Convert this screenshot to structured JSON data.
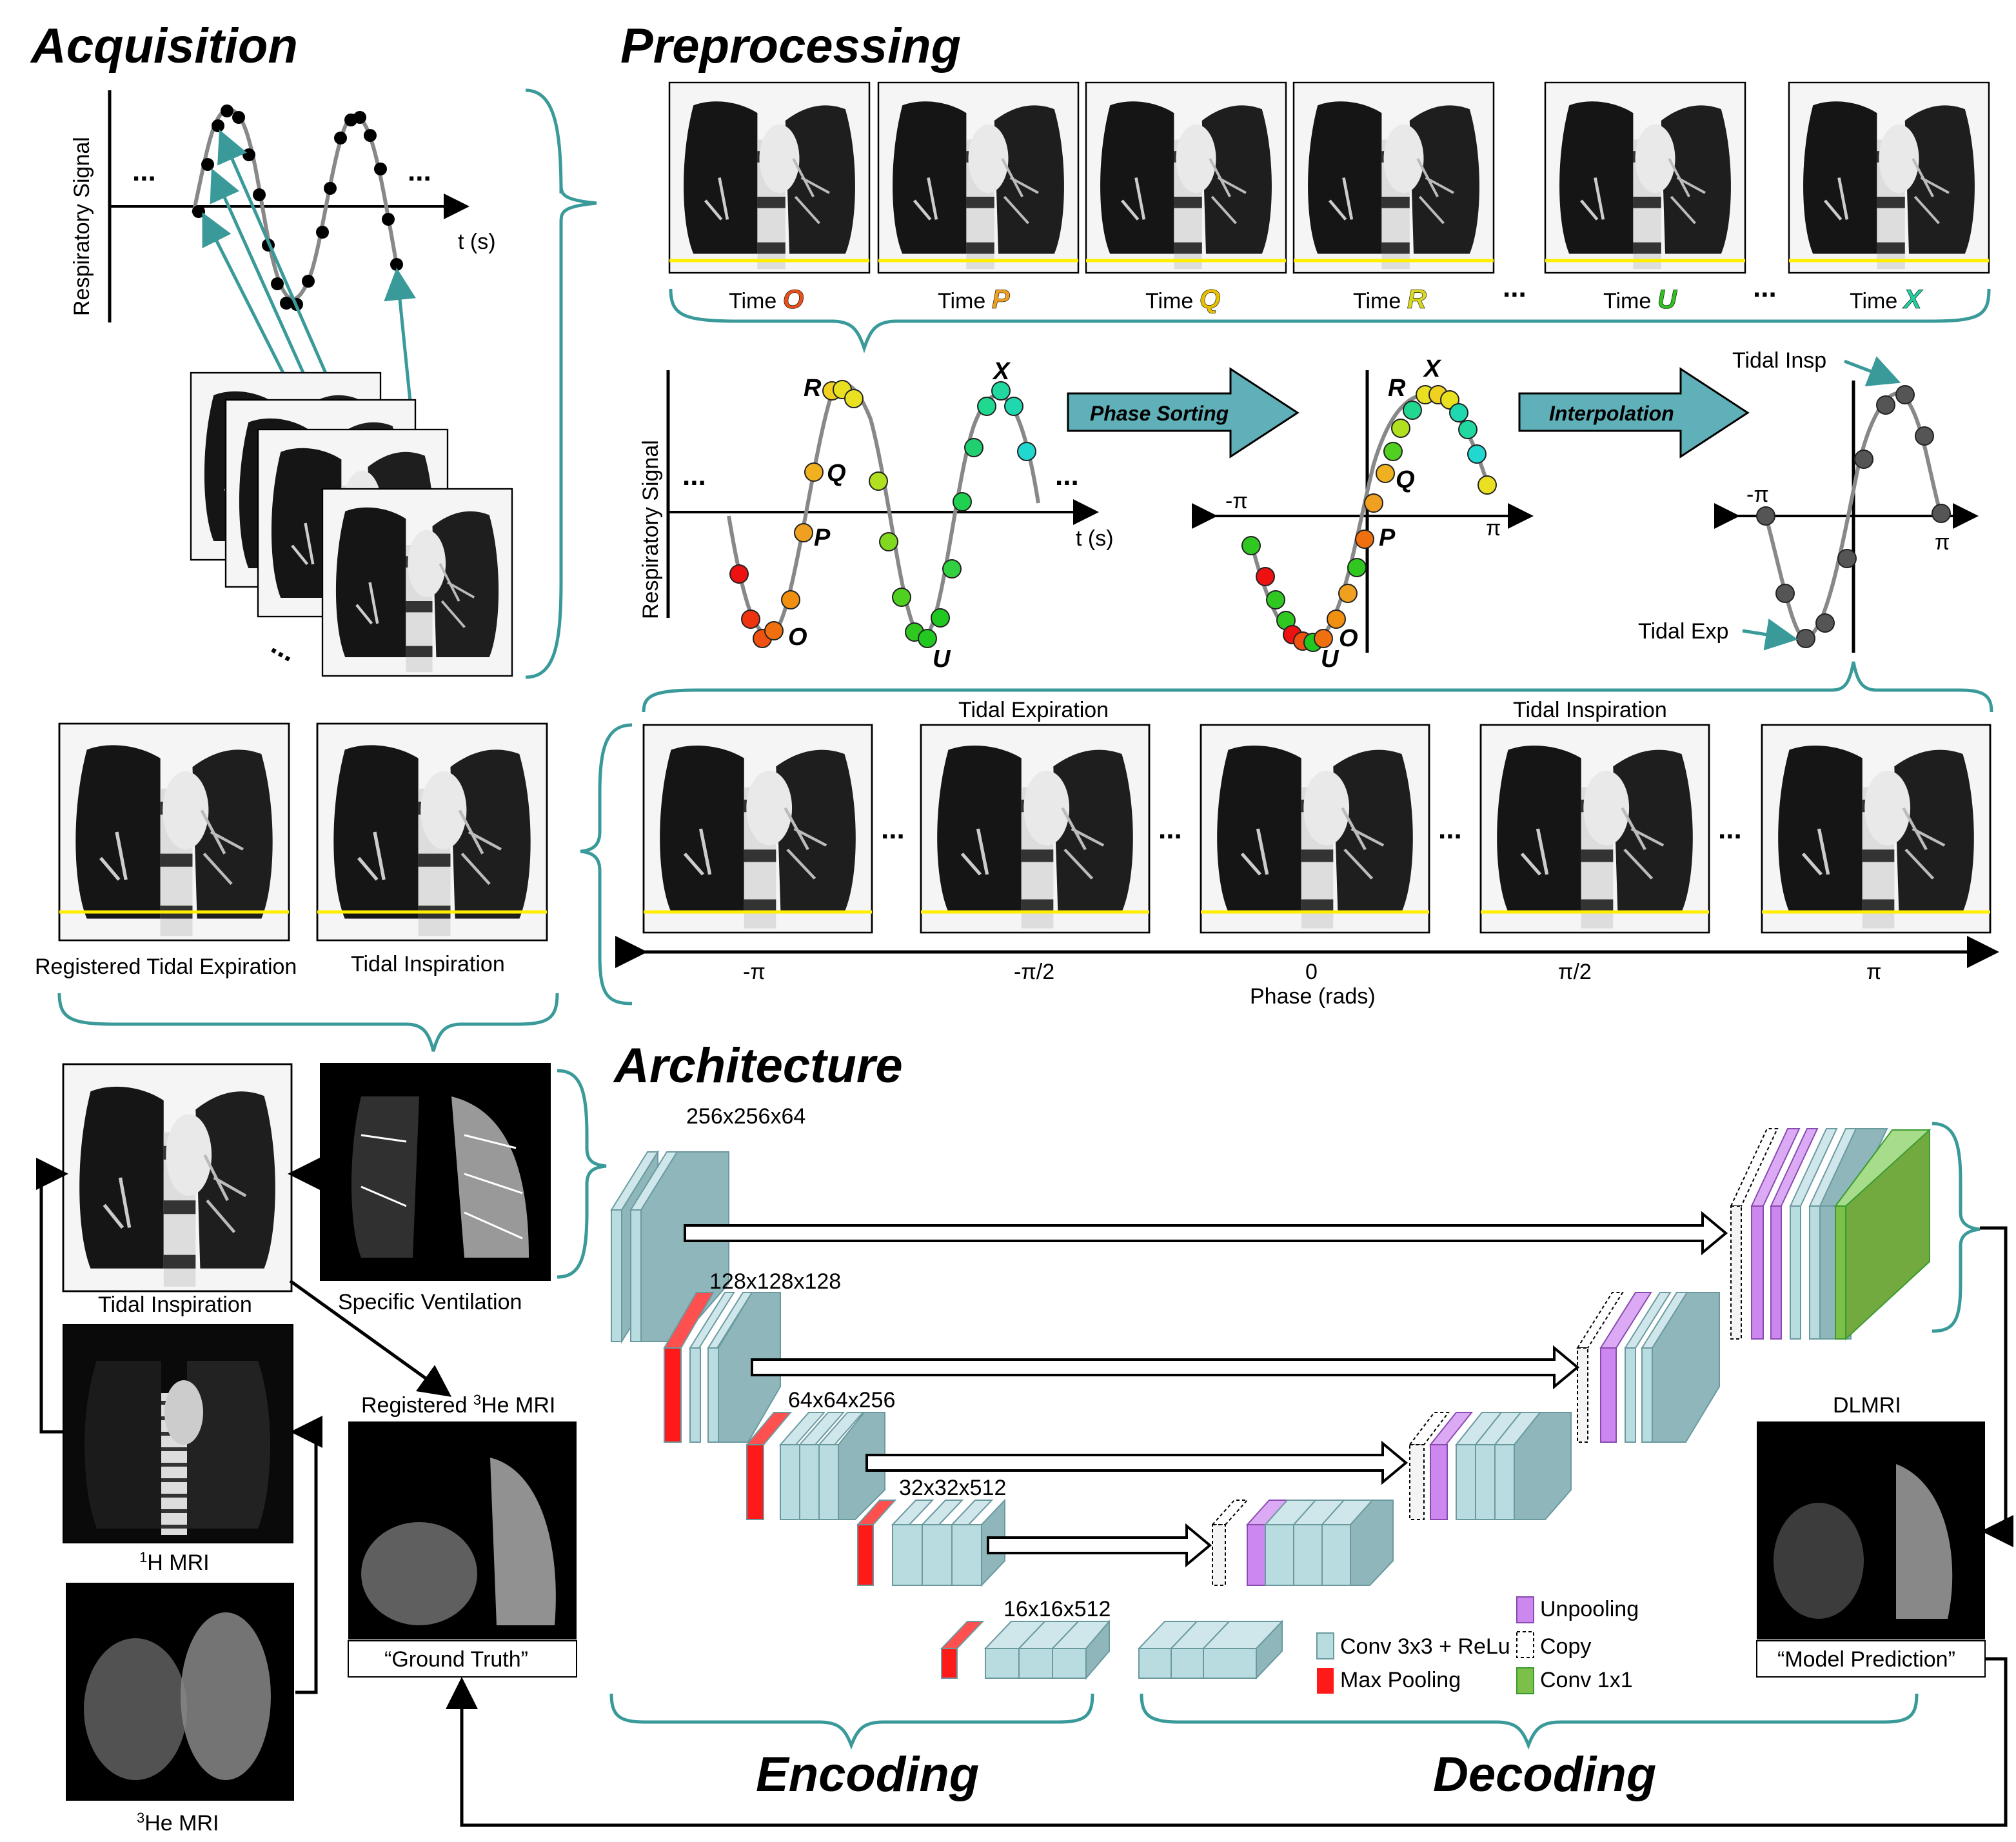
{
  "sections": {
    "acquisition": "Acquisition",
    "preprocessing": "Preprocessing",
    "architecture": "Architecture",
    "encoding": "Encoding",
    "decoding": "Decoding"
  },
  "acq": {
    "ylabel": "Respiratory Signal",
    "xlabel": "t (s)",
    "dots": "..."
  },
  "pre": {
    "times": [
      {
        "prefix": "Time ",
        "letter": "O",
        "color": "#e8501a"
      },
      {
        "prefix": "Time ",
        "letter": "P",
        "color": "#f0a020"
      },
      {
        "prefix": "Time ",
        "letter": "Q",
        "color": "#e8c000"
      },
      {
        "prefix": "Time ",
        "letter": "R",
        "color": "#d8d820"
      },
      {
        "prefix": "Time ",
        "letter": "U",
        "color": "#30c020"
      },
      {
        "prefix": "Time ",
        "letter": "X",
        "color": "#20d0a0"
      }
    ],
    "ylabel": "Respiratory Signal",
    "xlabel": "t (s)",
    "phase_sorting": "Phase Sorting",
    "interpolation": "Interpolation",
    "neg_pi": "-π",
    "pi": "π",
    "letters": {
      "O": "O",
      "P": "P",
      "Q": "Q",
      "R": "R",
      "U": "U",
      "X": "X"
    },
    "tidal_insp": "Tidal Insp",
    "tidal_exp": "Tidal Exp",
    "tidal_expiration": "Tidal Expiration",
    "tidal_inspiration": "Tidal Inspiration",
    "phase_ticks": [
      "-π",
      "-π/2",
      "0",
      "π/2",
      "π"
    ],
    "phase_label": "Phase (rads)"
  },
  "reg": {
    "registered_exp": "Registered Tidal Expiration",
    "tidal_insp": "Tidal Inspiration"
  },
  "inputs": {
    "tidal_insp": "Tidal Inspiration",
    "specific_vent": "Specific Ventilation",
    "h_mri_sup": "1",
    "h_mri": "H MRI",
    "he_mri_sup": "3",
    "he_mri": "He MRI",
    "reg_he_pre": "Registered ",
    "reg_he_sup": "3",
    "reg_he_post": "He MRI",
    "ground_truth": "“Ground Truth”",
    "dlmri": "DLMRI",
    "model_prediction": "“Model Prediction”"
  },
  "arch": {
    "dims": [
      "256x256x64",
      "128x128x128",
      "64x64x256",
      "32x32x512",
      "16x16x512"
    ],
    "legend": {
      "conv": "Conv 3x3 + ReLu",
      "maxpool": "Max Pooling",
      "unpool": "Unpooling",
      "copy": "Copy",
      "conv1": "Conv 1x1"
    },
    "colors": {
      "conv": "#b9dce0",
      "maxpool": "#ff1a1a",
      "unpool": "#cc88ee",
      "copy": "#f0f0f0",
      "conv1": "#7cc04a",
      "teal": "#3a9a9a"
    }
  }
}
